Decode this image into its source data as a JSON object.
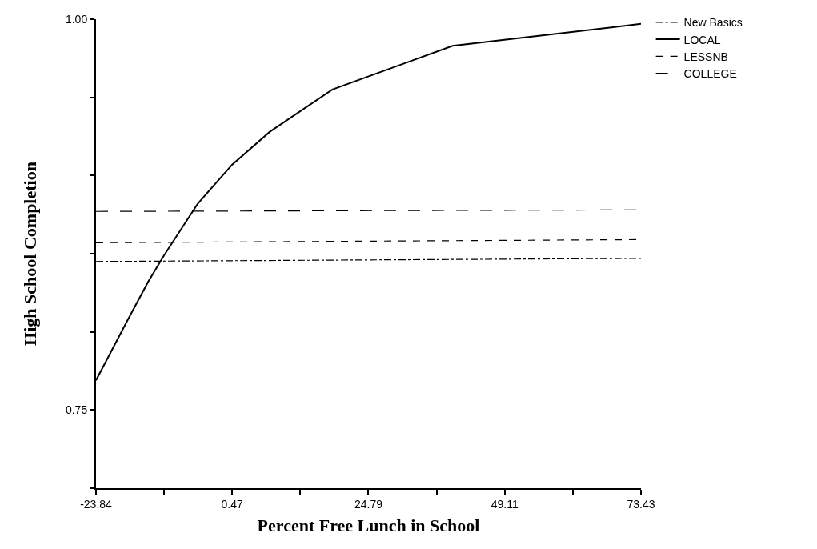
{
  "chart_data": {
    "type": "line",
    "xlabel": "Percent Free Lunch in School",
    "ylabel": "High School Completion",
    "xlim": [
      -23.84,
      73.43
    ],
    "ylim": [
      0.7,
      1.0
    ],
    "xticks": [
      -23.84,
      {
        "value": -11.68,
        "label": null
      },
      0.47,
      {
        "value": 12.63,
        "label": null
      },
      24.79,
      {
        "value": 36.95,
        "label": null
      },
      49.11,
      {
        "value": 61.27,
        "label": null
      },
      73.43
    ],
    "yticks": [
      {
        "value": 0.7,
        "label": null
      },
      {
        "value": 0.75,
        "label": "0.75"
      },
      {
        "value": 0.8,
        "label": null
      },
      {
        "value": 0.85,
        "label": null
      },
      {
        "value": 0.9,
        "label": null
      },
      {
        "value": 0.95,
        "label": null
      },
      {
        "value": 1.0,
        "label": "1.00"
      }
    ],
    "grid": false,
    "legend": "top right",
    "marker": "none",
    "series": [
      {
        "name": "New Basics",
        "color": "#000000",
        "line_style": "dashdot",
        "x": [
          -23.84,
          73.43
        ],
        "values": [
          0.845,
          0.847
        ]
      },
      {
        "name": "LOCAL",
        "color": "#000000",
        "line_style": "solid",
        "x": [
          -23.84,
          -18.12,
          -14.54,
          -11.68,
          -5.67,
          0.48,
          7.2,
          18.36,
          39.81,
          73.43
        ],
        "values": [
          0.769,
          0.808,
          0.832,
          0.849,
          0.882,
          0.907,
          0.928,
          0.955,
          0.983,
          0.997
        ]
      },
      {
        "name": "LESSNB",
        "color": "#000000",
        "line_style": "dashed",
        "x": [
          -23.84,
          73.43
        ],
        "values": [
          0.857,
          0.859
        ]
      },
      {
        "name": "COLLEGE",
        "color": "#000000",
        "line_style": "longdash",
        "x": [
          -23.84,
          73.43
        ],
        "values": [
          0.877,
          0.878
        ]
      }
    ]
  }
}
